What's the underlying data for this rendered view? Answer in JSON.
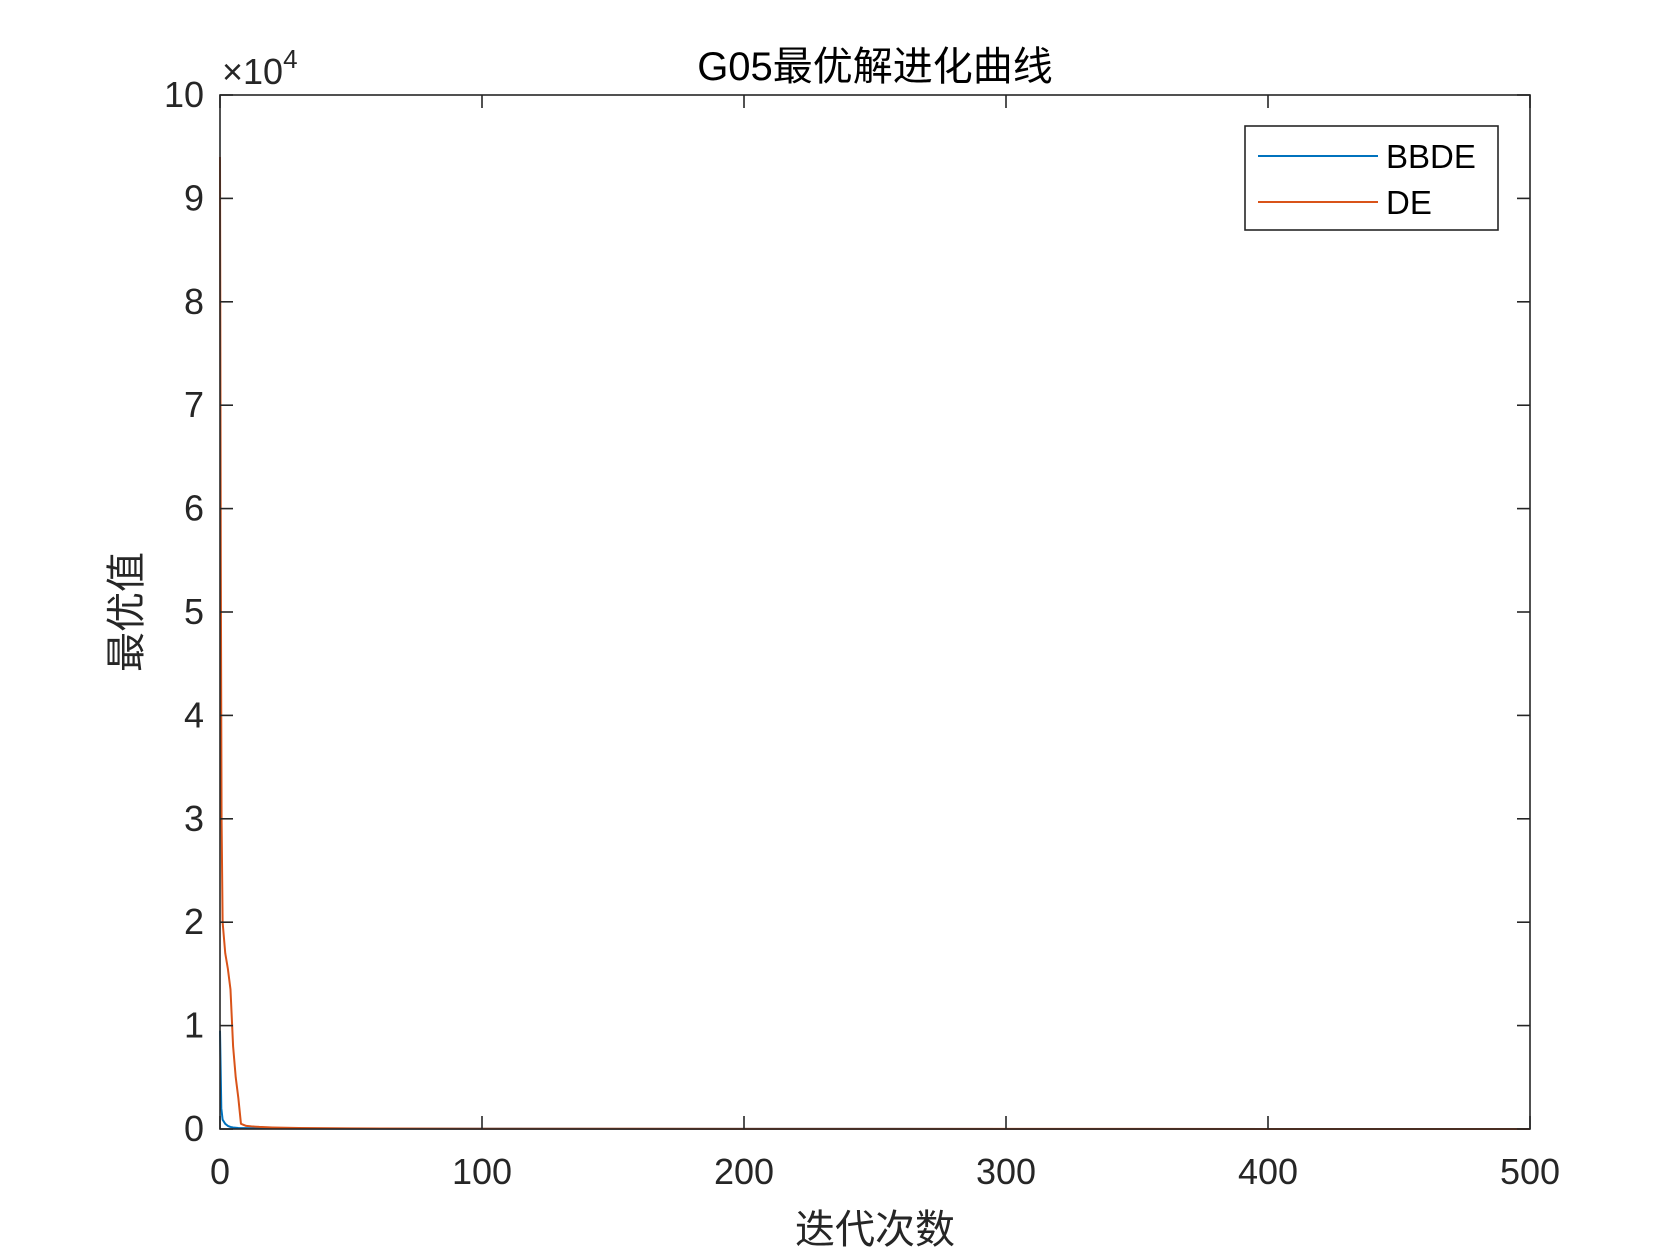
{
  "chart_data": {
    "type": "line",
    "title": "G05最优解进化曲线",
    "xlabel": "迭代次数",
    "ylabel": "最优值",
    "xlim": [
      0,
      500
    ],
    "ylim": [
      0,
      100000
    ],
    "xticks": [
      0,
      100,
      200,
      300,
      400,
      500
    ],
    "yticks": [
      0,
      10000,
      20000,
      30000,
      40000,
      50000,
      60000,
      70000,
      80000,
      90000,
      100000
    ],
    "xtick_labels": [
      "0",
      "100",
      "200",
      "300",
      "400",
      "500"
    ],
    "ytick_labels": [
      "0",
      "1",
      "2",
      "3",
      "4",
      "5",
      "6",
      "7",
      "8",
      "9",
      "10"
    ],
    "y_exponent": {
      "base": "×10",
      "power": "4"
    },
    "grid": false,
    "legend_position": "top-right",
    "series": [
      {
        "name": "BBDE",
        "color": "#0072BD",
        "x": [
          0,
          0.5,
          1,
          2,
          3,
          4,
          5,
          7,
          10,
          15,
          20,
          30,
          50,
          100,
          200,
          300,
          400,
          500
        ],
        "y": [
          9500,
          2000,
          900,
          500,
          300,
          200,
          150,
          100,
          80,
          60,
          50,
          40,
          30,
          20,
          10,
          5,
          3,
          2
        ]
      },
      {
        "name": "DE",
        "color": "#D95319",
        "x": [
          0,
          0.3,
          0.6,
          1,
          1.5,
          2,
          3,
          4,
          5,
          6,
          7,
          8,
          10,
          12,
          15,
          20,
          30,
          50,
          100,
          200,
          300,
          400,
          500
        ],
        "y": [
          94000,
          55000,
          30000,
          20000,
          18500,
          17000,
          15500,
          13500,
          8000,
          5000,
          3000,
          500,
          300,
          250,
          200,
          150,
          100,
          60,
          30,
          15,
          8,
          5,
          3
        ]
      }
    ]
  }
}
